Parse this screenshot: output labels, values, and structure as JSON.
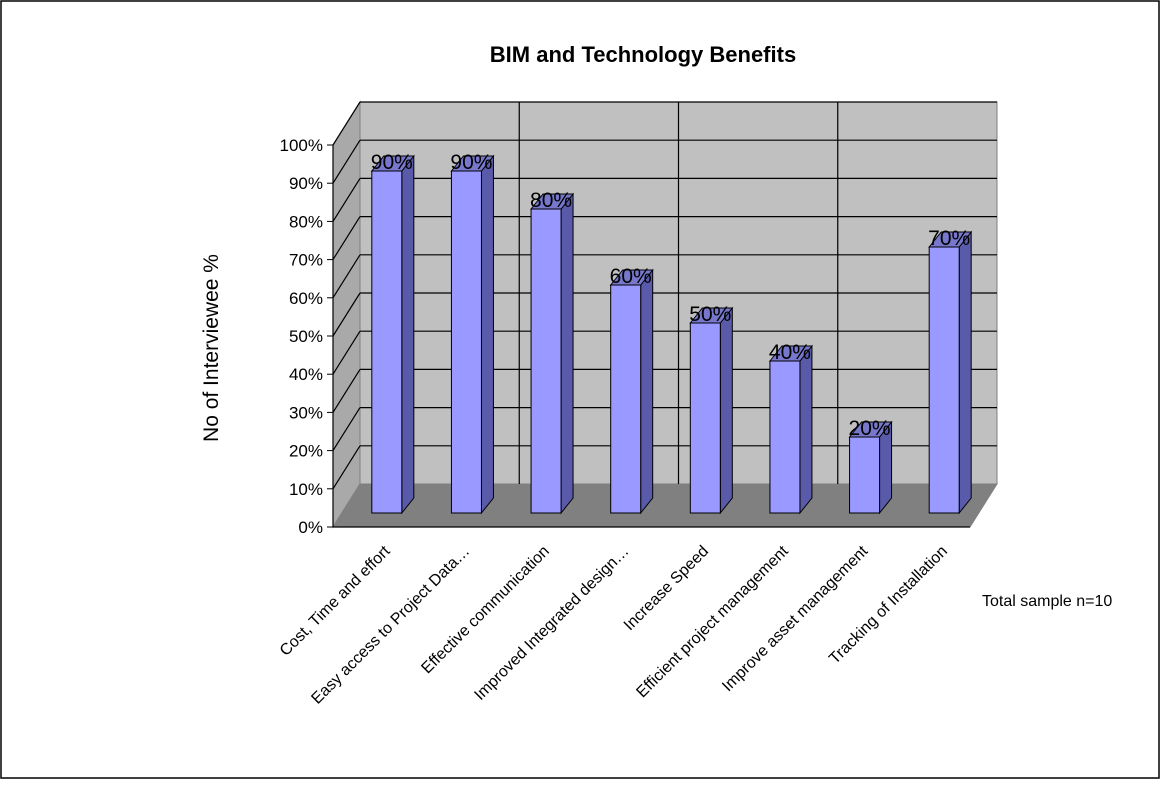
{
  "chart_data": {
    "type": "bar",
    "title": "BIM and Technology Benefits",
    "xlabel": "",
    "ylabel": "No of Interviewee %",
    "categories": [
      "Cost, Time and effort",
      "Easy access to Project Data…",
      "Effective communication",
      "Improved Integrated design…",
      "Increase Speed",
      "Efficient project management",
      "Improve asset management",
      "Tracking of Installation"
    ],
    "values": [
      90,
      90,
      80,
      60,
      50,
      40,
      20,
      70
    ],
    "data_labels": [
      "90%",
      "90%",
      "80%",
      "60%",
      "50%",
      "40%",
      "20%",
      "70%"
    ],
    "ylim": [
      0,
      100
    ],
    "y_ticks": [
      "0%",
      "10%",
      "20%",
      "30%",
      "40%",
      "50%",
      "60%",
      "70%",
      "80%",
      "90%",
      "100%"
    ],
    "grid": true,
    "style": "3d-column",
    "annotation": "Total sample n=10",
    "colors": {
      "bar_front": "#9999ff",
      "bar_side": "#5a5aaa",
      "bar_top": "#7777cc",
      "back_wall": "#c0c0c0",
      "floor": "#808080",
      "side_wall": "#a9a9a9"
    }
  }
}
